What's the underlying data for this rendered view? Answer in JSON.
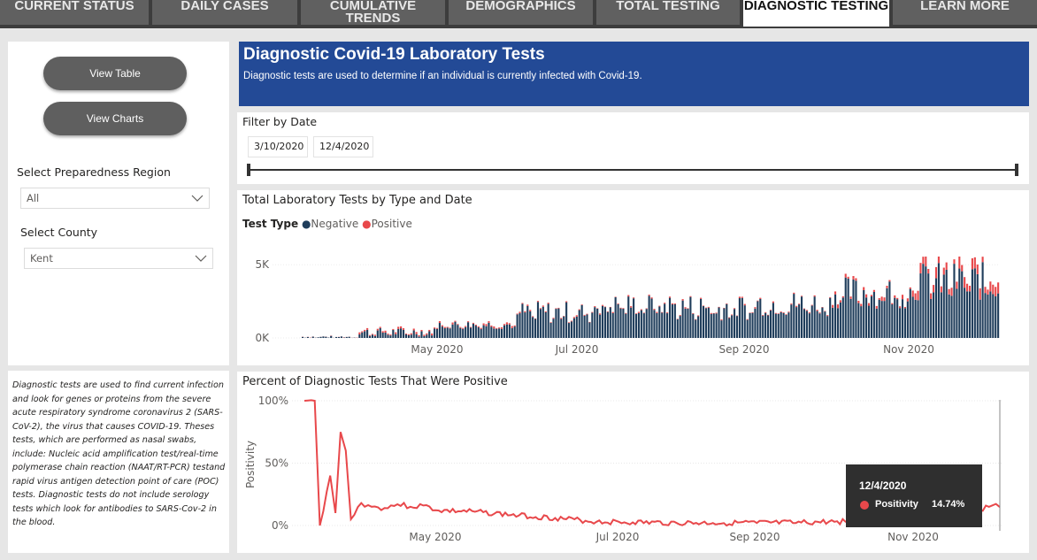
{
  "tabs": [
    {
      "label": "CURRENT STATUS",
      "active": false
    },
    {
      "label": "DAILY CASES",
      "active": false
    },
    {
      "label": "CUMULATIVE TRENDS",
      "active": false
    },
    {
      "label": "DEMOGRAPHICS",
      "active": false
    },
    {
      "label": "TOTAL TESTING",
      "active": false
    },
    {
      "label": "DIAGNOSTIC TESTING",
      "active": true
    },
    {
      "label": "LEARN MORE",
      "active": false
    }
  ],
  "sidebar": {
    "view_table": "View Table",
    "view_charts": "View Charts",
    "region_label": "Select Preparedness Region",
    "region_value": "All",
    "county_label": "Select County",
    "county_value": "Kent",
    "description": "Diagnostic tests are used to find current infection and look for genes or proteins from the severe acute respiratory syndrome coronavirus 2 (SARS-CoV-2), the virus that causes COVID-19. Theses tests, which are performed as nasal swabs, include: Nucleic acid amplification test/real-time polymerase chain reaction (NAAT/RT-PCR) testand rapid virus antigen detection point of care (POC) tests.  Diagnostic tests do not include serology tests which look for antibodies to SARS-Cov-2 in the blood."
  },
  "header": {
    "title": "Diagnostic Covid-19 Laboratory Tests",
    "subtitle": "Diagnostic tests are used to determine if an individual is currently infected with Covid-19."
  },
  "filter": {
    "label": "Filter by Date",
    "start": "3/10/2020",
    "end": "12/4/2020"
  },
  "tooltip": {
    "date": "12/4/2020",
    "label": "Positivity",
    "value": "14.74%"
  },
  "colors": {
    "negative": "#1f3d5b",
    "positive": "#e8484b",
    "banner": "#234a96"
  },
  "chart_data": [
    {
      "type": "bar",
      "title": "Total Laboratory Tests by Type and Date",
      "legend_title": "Test Type",
      "legend": [
        "Negative",
        "Positive"
      ],
      "legend_position": "top-left",
      "stacked": true,
      "x_ticks": [
        "May 2020",
        "Jul 2020",
        "Sep 2020",
        "Nov 2020"
      ],
      "y_ticks": [
        "0K",
        "5K"
      ],
      "ylim": [
        0,
        6000
      ],
      "series": [
        {
          "name": "Negative",
          "approx_daily_range_by_month": {
            "Mar": [
              0,
              150
            ],
            "Apr": [
              100,
              700
            ],
            "May": [
              600,
              1200
            ],
            "Jun": [
              1000,
              2500
            ],
            "Jul": [
              1500,
              3000
            ],
            "Aug": [
              1200,
              3000
            ],
            "Sep": [
              1500,
              3200
            ],
            "Oct": [
              2000,
              4200
            ],
            "Nov": [
              2500,
              5200
            ],
            "Dec": [
              2600,
              4200
            ]
          }
        },
        {
          "name": "Positive",
          "approx_daily_range_by_month": {
            "Mar": [
              0,
              20
            ],
            "Apr": [
              50,
              150
            ],
            "May": [
              50,
              150
            ],
            "Jun": [
              30,
              100
            ],
            "Jul": [
              30,
              100
            ],
            "Aug": [
              30,
              100
            ],
            "Sep": [
              30,
              100
            ],
            "Oct": [
              80,
              300
            ],
            "Nov": [
              300,
              900
            ],
            "Dec": [
              600,
              900
            ]
          }
        }
      ]
    },
    {
      "type": "line",
      "title": "Percent of Diagnostic Tests That Were Positive",
      "ylabel": "Positivity",
      "x_ticks": [
        "May 2020",
        "Jul 2020",
        "Sep 2020",
        "Nov 2020"
      ],
      "y_ticks": [
        "0%",
        "50%",
        "100%"
      ],
      "ylim": [
        0,
        100
      ],
      "points": [
        [
          "3/10",
          100
        ],
        [
          "3/14",
          100
        ],
        [
          "3/16",
          0
        ],
        [
          "3/20",
          40
        ],
        [
          "3/22",
          10
        ],
        [
          "3/24",
          75
        ],
        [
          "3/26",
          60
        ],
        [
          "3/28",
          5
        ],
        [
          "4/1",
          18
        ],
        [
          "4/5",
          15
        ],
        [
          "4/10",
          14
        ],
        [
          "4/15",
          17
        ],
        [
          "4/20",
          15
        ],
        [
          "4/25",
          16
        ],
        [
          "5/1",
          12
        ],
        [
          "5/15",
          11
        ],
        [
          "6/1",
          8
        ],
        [
          "6/15",
          6
        ],
        [
          "7/1",
          3
        ],
        [
          "7/15",
          2.5
        ],
        [
          "8/1",
          2
        ],
        [
          "8/15",
          2
        ],
        [
          "9/1",
          2
        ],
        [
          "9/15",
          2
        ],
        [
          "10/1",
          3
        ],
        [
          "10/15",
          4
        ],
        [
          "11/1",
          6
        ],
        [
          "11/15",
          10
        ],
        [
          "11/25",
          12
        ],
        [
          "12/1",
          16
        ],
        [
          "12/4",
          14.74
        ]
      ]
    }
  ]
}
